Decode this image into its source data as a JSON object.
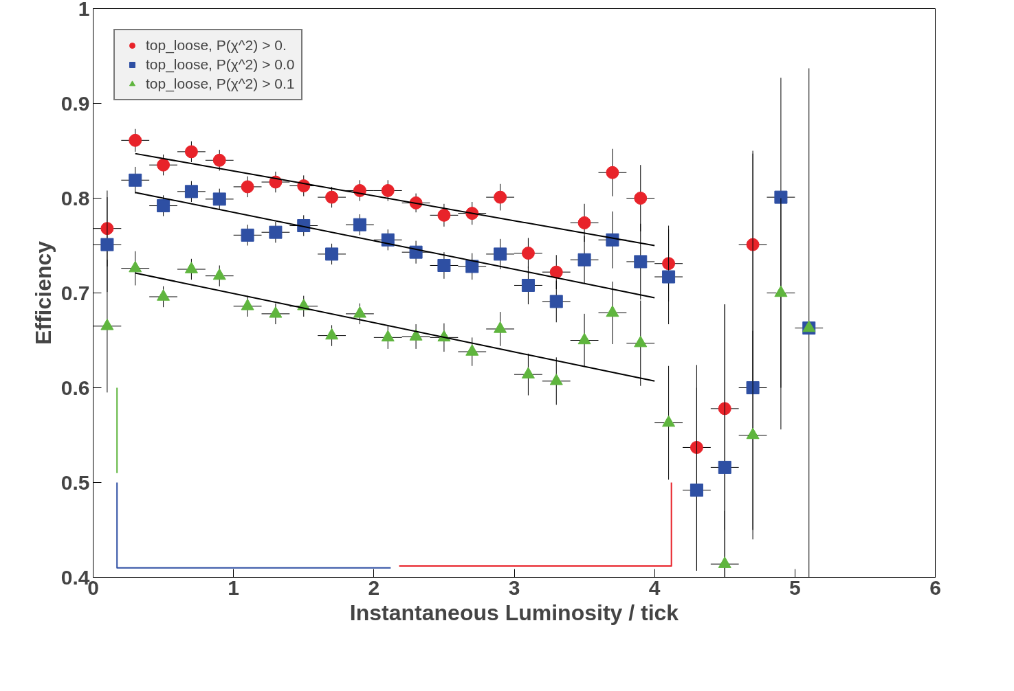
{
  "chart_data": {
    "type": "scatter",
    "xlabel": "Instantaneous Luminosity / tick",
    "ylabel": "Efficiency",
    "x": [
      0.1,
      0.3,
      0.5,
      0.7,
      0.9,
      1.1,
      1.3,
      1.5,
      1.7,
      1.9,
      2.1,
      2.3,
      2.5,
      2.7,
      2.9,
      3.1,
      3.3,
      3.5,
      3.7,
      3.9,
      4.1,
      4.3,
      4.5,
      4.7,
      4.9,
      5.1
    ],
    "xlim": [
      0,
      6
    ],
    "ylim": [
      0.4,
      1
    ],
    "xticks": [
      0,
      1,
      2,
      3,
      4,
      5,
      6
    ],
    "yticks": [
      0.4,
      0.5,
      0.6,
      0.7,
      0.8,
      0.9,
      {
        "value": 1,
        "label": "1"
      }
    ],
    "grid": false,
    "legend": "top left",
    "series": [
      {
        "name": "top_loose, P(χ^2) > 0.",
        "color": "#e8232a",
        "marker": "circle",
        "values": [
          0.768,
          0.861,
          0.835,
          0.849,
          0.84,
          0.812,
          0.817,
          0.813,
          0.801,
          0.808,
          0.808,
          0.795,
          0.782,
          0.784,
          0.801,
          0.742,
          0.722,
          0.774,
          0.827,
          0.8,
          0.731,
          0.537,
          0.578,
          0.751,
          null,
          null
        ],
        "errors": [
          0.04,
          0.012,
          0.011,
          0.011,
          0.011,
          0.011,
          0.011,
          0.011,
          0.011,
          0.011,
          0.011,
          0.01,
          0.012,
          0.012,
          0.014,
          0.016,
          0.018,
          0.02,
          0.025,
          0.035,
          0.04,
          [
            0.407,
            0.624
          ],
          [
            0.45,
            0.688
          ],
          [
            0.6,
            0.85
          ],
          null,
          null
        ],
        "xerrors": [
          0.1,
          0.1,
          0.1,
          0.1,
          0.1,
          0.1,
          0.1,
          0.1,
          0.1,
          0.1,
          0.1,
          0.1,
          0.1,
          0.1,
          0.1,
          0.1,
          0.1,
          0.1,
          0.1,
          0.1,
          0.1,
          0.1,
          0.1,
          0.1,
          null,
          null
        ]
      },
      {
        "name": "top_loose, P(χ^2) > 0.0",
        "color": "#2e4fa3",
        "marker": "square",
        "values": [
          0.751,
          0.819,
          0.792,
          0.807,
          0.799,
          0.761,
          0.764,
          0.771,
          0.741,
          0.772,
          0.756,
          0.743,
          0.729,
          0.728,
          0.741,
          0.708,
          0.691,
          0.735,
          0.756,
          0.733,
          0.717,
          0.492,
          0.516,
          0.6,
          0.801,
          0.663
        ],
        "errors": [
          0.05,
          0.014,
          0.011,
          0.011,
          0.011,
          0.011,
          0.011,
          0.011,
          0.011,
          0.011,
          0.011,
          0.012,
          0.014,
          0.014,
          0.016,
          0.02,
          0.022,
          0.025,
          0.03,
          0.04,
          0.05,
          [
            0.407,
            0.6
          ],
          [
            0.4,
            0.688
          ],
          [
            0.45,
            0.847
          ],
          [
            0.556,
            0.927
          ],
          [
            0.4,
            0.937
          ]
        ],
        "xerrors": [
          0.1,
          0.1,
          0.1,
          0.1,
          0.1,
          0.1,
          0.1,
          0.1,
          0.1,
          0.1,
          0.1,
          0.1,
          0.1,
          0.1,
          0.1,
          0.1,
          0.1,
          0.1,
          0.1,
          0.1,
          0.1,
          0.1,
          0.1,
          0.1,
          0.1,
          0.1
        ]
      },
      {
        "name": "top_loose, P(χ^2) > 0.1",
        "color": "#5fb53e",
        "marker": "triangle",
        "values": [
          0.665,
          0.726,
          0.696,
          0.725,
          0.718,
          0.686,
          0.678,
          0.686,
          0.655,
          0.678,
          0.653,
          0.654,
          0.653,
          0.638,
          0.662,
          0.614,
          0.607,
          0.65,
          0.679,
          0.647,
          0.563,
          null,
          0.414,
          0.55,
          0.7,
          0.663
        ],
        "errors": [
          0.07,
          0.018,
          0.011,
          0.011,
          0.011,
          0.011,
          0.011,
          0.011,
          0.011,
          0.011,
          0.012,
          0.013,
          0.015,
          0.015,
          0.018,
          0.022,
          0.025,
          0.028,
          0.033,
          0.045,
          0.06,
          null,
          [
            0.4,
            0.47
          ],
          [
            0.44,
            0.66
          ],
          [
            0.6,
            0.8
          ],
          null
        ],
        "xerrors": [
          0.1,
          0.1,
          0.1,
          0.1,
          0.1,
          0.1,
          0.1,
          0.1,
          0.1,
          0.1,
          0.1,
          0.1,
          0.1,
          0.1,
          0.1,
          0.1,
          0.1,
          0.1,
          0.1,
          0.1,
          0.1,
          null,
          0.1,
          0.1,
          0.1,
          null
        ]
      },
      {
        "type": "line",
        "color": "#000000",
        "x": [
          0.3,
          4.0
        ],
        "values": [
          0.847,
          0.75
        ]
      },
      {
        "type": "line",
        "color": "#000000",
        "x": [
          0.3,
          4.0
        ],
        "values": [
          0.806,
          0.695
        ]
      },
      {
        "type": "line",
        "color": "#000000",
        "x": [
          0.3,
          4.0
        ],
        "values": [
          0.721,
          0.607
        ]
      },
      {
        "type": "line",
        "color": "#5fb53e",
        "x": [
          0.17,
          0.17
        ],
        "values": [
          0.6,
          0.51
        ]
      },
      {
        "type": "line",
        "color": "#2e4fa3",
        "x": [
          0.17,
          0.17,
          2.12
        ],
        "values": [
          0.5,
          0.41,
          0.41
        ]
      },
      {
        "type": "line",
        "color": "#e8232a",
        "x": [
          2.18,
          4.12,
          4.12
        ],
        "values": [
          0.412,
          0.412,
          0.5
        ]
      }
    ]
  }
}
